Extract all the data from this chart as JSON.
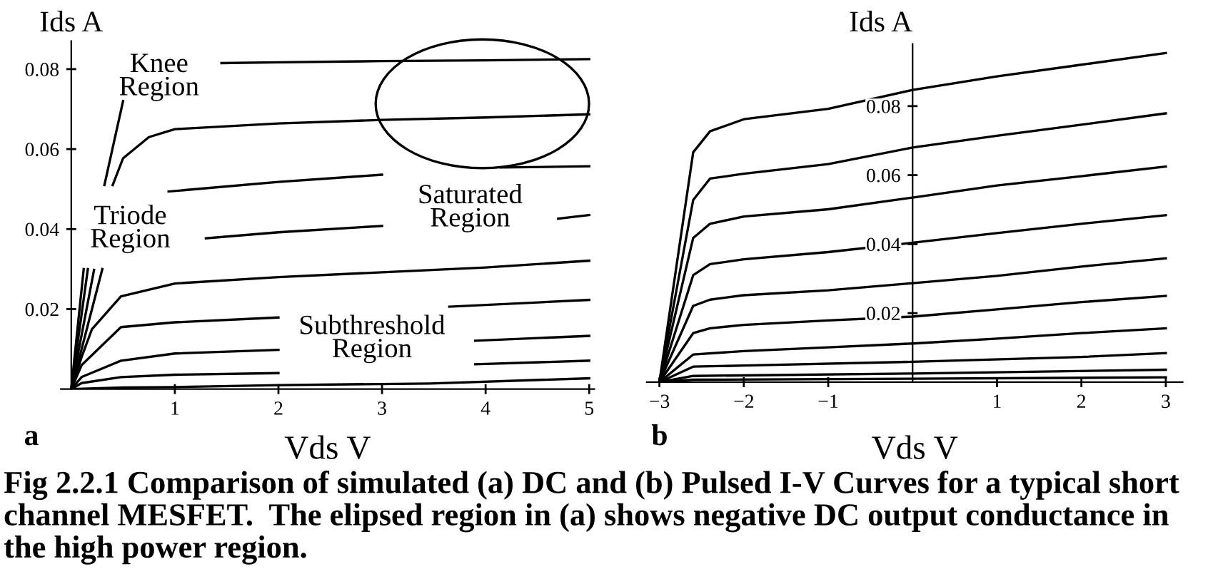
{
  "chart_data": [
    {
      "type": "line",
      "title": "a",
      "xlabel": "Vds V",
      "ylabel": "Ids A",
      "xlim": [
        -0.1,
        5.05
      ],
      "ylim": [
        0,
        0.087
      ],
      "xticks": [
        1,
        2,
        3,
        4,
        5
      ],
      "yticks": [
        0.02,
        0.04,
        0.06,
        0.08
      ],
      "grid": false,
      "legend": false,
      "marker": "none",
      "line_style": "solid",
      "series": [
        {
          "color": "#000000",
          "x": [
            0,
            0.12,
            0.25,
            0.32,
            0.5,
            1.0,
            1.45,
            2,
            3,
            4,
            5
          ],
          "values": [
            0,
            0.03,
            null,
            0.051,
            0.072,
            null,
            0.0815,
            0.0817,
            0.082,
            0.0822,
            0.0825
          ]
        },
        {
          "color": "#000000",
          "x": [
            0,
            0.16,
            0.3,
            0.4,
            0.5,
            0.75,
            1,
            2,
            3,
            4,
            5
          ],
          "values": [
            0,
            0.03,
            null,
            0.051,
            0.0577,
            0.063,
            0.065,
            0.0664,
            0.0673,
            0.0679,
            0.0687
          ]
        },
        {
          "color": "#000000",
          "x": [
            0,
            0.22,
            0.5,
            0.94,
            2,
            3,
            3.5,
            4.15,
            5
          ],
          "values": [
            0,
            0.0298,
            null,
            0.0494,
            0.0518,
            0.0536,
            null,
            0.0554,
            0.0557
          ]
        },
        {
          "color": "#000000",
          "x": [
            0,
            0.3,
            0.8,
            1.3,
            2,
            3,
            4,
            4.7,
            5
          ],
          "values": [
            0,
            0.03,
            null,
            0.0377,
            0.0392,
            0.0408,
            null,
            0.0426,
            0.0435
          ]
        },
        {
          "color": "#000000",
          "x": [
            0,
            0.1,
            0.2,
            0.48,
            1,
            2,
            3,
            4,
            5
          ],
          "values": [
            0,
            0.008,
            0.015,
            0.0232,
            0.0264,
            0.028,
            0.0292,
            0.0304,
            0.0321
          ]
        },
        {
          "color": "#000000",
          "x": [
            0,
            0.1,
            0.48,
            1,
            2,
            3,
            3.65,
            5
          ],
          "values": [
            0,
            0.006,
            0.0155,
            0.0167,
            0.0179,
            null,
            0.0206,
            0.0223
          ]
        },
        {
          "color": "#000000",
          "x": [
            0,
            0.1,
            0.48,
            1,
            2,
            3,
            3.9,
            5
          ],
          "values": [
            0,
            0.003,
            0.0071,
            0.0089,
            0.0098,
            null,
            0.0121,
            0.0133
          ]
        },
        {
          "color": "#000000",
          "x": [
            0,
            0.1,
            0.48,
            1,
            2,
            3,
            3.9,
            5
          ],
          "values": [
            0,
            0.0015,
            0.003,
            0.0036,
            0.004,
            null,
            0.0062,
            0.0071
          ]
        },
        {
          "color": "#000000",
          "x": [
            0,
            0.5,
            1,
            2,
            3.46,
            5
          ],
          "values": [
            0,
            0.0004,
            0.0005,
            0.001,
            0.0014,
            0.0027
          ]
        }
      ],
      "annotations": [
        "Knee\nRegion",
        "Triode\nRegion",
        "Saturated\nRegion",
        "Subthreshold\nRegion",
        "Fig 2.2.1 Comparison of simulated (a) DC and (b) Pulsed I-V Curves for a typical short channel MESFET.  The elipsed region in (a) shows negative DC output conductance in the high power region."
      ]
    },
    {
      "type": "line",
      "title": "b",
      "xlabel": "Vds V",
      "ylabel": "Ids A",
      "xlim": [
        -3.15,
        3.2
      ],
      "ylim": [
        0,
        0.098
      ],
      "xticks": [
        {
          "value": -3,
          "label": "−3"
        },
        {
          "value": -2,
          "label": "−2"
        },
        {
          "value": -1,
          "label": "−1"
        },
        1,
        2,
        3
      ],
      "yticks": [
        0.02,
        0.04,
        0.06,
        0.08
      ],
      "grid": false,
      "legend": false,
      "marker": "none",
      "line_style": "solid",
      "series": [
        {
          "color": "#000000",
          "x": [
            -3,
            -2.6,
            -2.4,
            -2,
            -1,
            0,
            1,
            2,
            3
          ],
          "values": [
            0,
            0.0666,
            0.0727,
            0.0762,
            0.0792,
            0.0847,
            0.0886,
            0.092,
            0.0954
          ]
        },
        {
          "color": "#000000",
          "x": [
            -3,
            -2.6,
            -2.4,
            -2,
            -1,
            0,
            1,
            2,
            3
          ],
          "values": [
            0,
            0.0528,
            0.059,
            0.0604,
            0.0632,
            0.068,
            0.0714,
            0.0746,
            0.0779
          ]
        },
        {
          "color": "#000000",
          "x": [
            -3,
            -2.6,
            -2.4,
            -2,
            -1,
            0,
            1,
            2,
            3
          ],
          "values": [
            0,
            0.0418,
            0.0459,
            0.048,
            0.0501,
            0.0535,
            0.057,
            0.0597,
            0.0625
          ]
        },
        {
          "color": "#000000",
          "x": [
            -3,
            -2.6,
            -2.4,
            -2,
            -1,
            0,
            1,
            2,
            3
          ],
          "values": [
            0,
            0.031,
            0.0342,
            0.0356,
            0.0377,
            0.0404,
            0.0432,
            0.0459,
            0.0484
          ]
        },
        {
          "color": "#000000",
          "x": [
            -3,
            -2.6,
            -2.4,
            -2,
            -1,
            0,
            1,
            2,
            3
          ],
          "values": [
            0,
            0.0221,
            0.0239,
            0.0252,
            0.0266,
            0.0287,
            0.0308,
            0.0335,
            0.0359
          ]
        },
        {
          "color": "#000000",
          "x": [
            -3,
            -2.6,
            -2.4,
            -2,
            -1,
            0,
            1,
            2,
            3
          ],
          "values": [
            0,
            0.0142,
            0.0156,
            0.0166,
            0.0179,
            0.019,
            0.0211,
            0.0232,
            0.025
          ]
        },
        {
          "color": "#000000",
          "x": [
            -3,
            -2.6,
            -2,
            -1,
            0,
            1,
            2,
            3
          ],
          "values": [
            0,
            0.008,
            0.009,
            0.0101,
            0.0112,
            0.0126,
            0.0142,
            0.0156
          ]
        },
        {
          "color": "#000000",
          "x": [
            -3,
            -2.6,
            -2,
            0,
            2,
            3
          ],
          "values": [
            0,
            0.0045,
            0.0048,
            0.0059,
            0.0073,
            0.0084
          ]
        },
        {
          "color": "#000000",
          "x": [
            -3,
            -2.6,
            0,
            3
          ],
          "values": [
            0,
            0.0018,
            0.0025,
            0.0036
          ]
        },
        {
          "color": "#000000",
          "x": [
            -3,
            -2.6,
            0,
            3
          ],
          "values": [
            0,
            0.0007,
            0.001,
            0.0014
          ]
        }
      ]
    }
  ]
}
